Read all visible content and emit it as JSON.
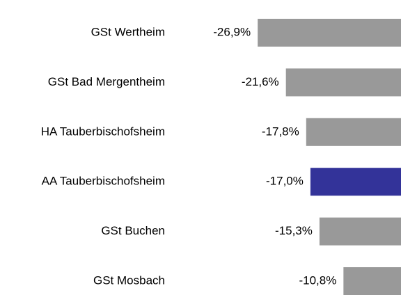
{
  "chart_data": {
    "type": "bar",
    "orientation": "horizontal",
    "categories": [
      "GSt Wertheim",
      "GSt Bad Mergentheim",
      "HA Tauberbischofsheim",
      "AA Tauberbischofsheim",
      "GSt Buchen",
      "GSt Mosbach"
    ],
    "values": [
      -26.9,
      -21.6,
      -17.8,
      -17.0,
      -15.3,
      -10.8
    ],
    "value_labels": [
      "-26,9%",
      "-21,6%",
      "-17,8%",
      "-17,0%",
      "-15,3%",
      "-10,8%"
    ],
    "colors": [
      "#999999",
      "#999999",
      "#999999",
      "#333399",
      "#999999",
      "#999999"
    ],
    "xlim": [
      -75,
      0
    ],
    "grid": false
  }
}
